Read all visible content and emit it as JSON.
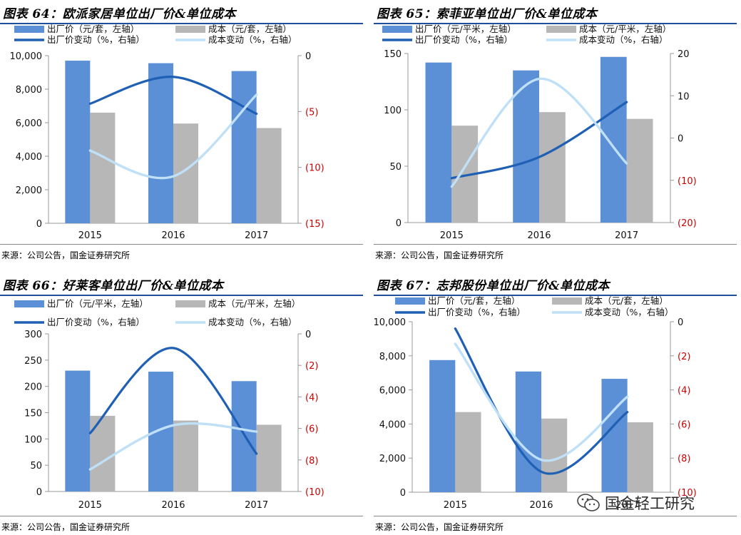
{
  "panels": [
    {
      "title": "图表 64：欧派家居单位出厂价&单位成本",
      "source": "来源：公司公告，国金证券研究所"
    },
    {
      "title": "图表 65：索菲亚单位出厂价&单位成本",
      "source": "来源：公司公告，国金证券研究所"
    },
    {
      "title": "图表 66：好莱客单位出厂价&单位成本",
      "source": "来源：公司公告，国金证券研究所"
    },
    {
      "title": "图表 67：志邦股份单位出厂价&单位成本",
      "source": "来源：公司公告，国金证券研究所"
    }
  ],
  "watermark": {
    "text": "国金轻工研究",
    "icon": "wechat-icon"
  },
  "colors": {
    "price_bar": "#5b8fd6",
    "cost_bar": "#b7b7b7",
    "price_line": "#1f5fb4",
    "cost_line": "#bfe0f6",
    "right_tick": "#cc0000"
  },
  "chart_data": [
    {
      "type": "bar",
      "categories": [
        "2015",
        "2016",
        "2017"
      ],
      "legend": [
        "出厂价（元/套，左轴）",
        "成本（元/套，左轴）",
        "出厂价变动（%，右轴）",
        "成本变动（%，右轴）"
      ],
      "ylim": [
        0,
        10000
      ],
      "yticks": [
        "0",
        "2,000",
        "4,000",
        "6,000",
        "8,000",
        "10,000"
      ],
      "y2lim": [
        -15,
        0
      ],
      "y2ticks": [
        "0",
        "(5)",
        "(10)",
        "(15)"
      ],
      "series": [
        {
          "name": "出厂价（元/套，左轴）",
          "type": "bar",
          "axis": "left",
          "values": [
            9700,
            9550,
            9080
          ]
        },
        {
          "name": "成本（元/套，左轴）",
          "type": "bar",
          "axis": "left",
          "values": [
            6600,
            5950,
            5680
          ]
        },
        {
          "name": "出厂价变动（%，右轴）",
          "type": "line",
          "axis": "right",
          "values": [
            -4.3,
            -1.9,
            -5.2
          ]
        },
        {
          "name": "成本变动（%，右轴）",
          "type": "line",
          "axis": "right",
          "values": [
            -8.5,
            -10.8,
            -3.5
          ]
        }
      ]
    },
    {
      "type": "bar",
      "categories": [
        "2015",
        "2016",
        "2017"
      ],
      "legend": [
        "出厂价（元/平米，左轴）",
        "成本（元/平米，左轴）",
        "出厂价变动（%，右轴）",
        "成本变动（%，右轴）"
      ],
      "ylim": [
        0,
        150
      ],
      "yticks": [
        "0",
        "50",
        "100",
        "150"
      ],
      "y2lim": [
        -20,
        20
      ],
      "y2ticks": [
        "20",
        "10",
        "0",
        "(10)",
        "(20)"
      ],
      "series": [
        {
          "name": "出厂价（元/平米，左轴）",
          "type": "bar",
          "axis": "left",
          "values": [
            142,
            135,
            147
          ]
        },
        {
          "name": "成本（元/平米，左轴）",
          "type": "bar",
          "axis": "left",
          "values": [
            86,
            98,
            92
          ]
        },
        {
          "name": "出厂价变动（%，右轴）",
          "type": "line",
          "axis": "right",
          "values": [
            -9.5,
            -4.5,
            8.5
          ]
        },
        {
          "name": "成本变动（%，右轴）",
          "type": "line",
          "axis": "right",
          "values": [
            -11.5,
            14.0,
            -6.0
          ]
        }
      ]
    },
    {
      "type": "bar",
      "categories": [
        "2015",
        "2016",
        "2017"
      ],
      "legend": [
        "出厂价（元/平米，左轴）",
        "成本（元/平米，左轴）",
        "出厂价变动（%，右轴）",
        "成本变动（%，右轴）"
      ],
      "ylim": [
        0,
        300
      ],
      "yticks": [
        "0",
        "50",
        "100",
        "150",
        "200",
        "250",
        "300"
      ],
      "y2lim": [
        -10,
        0
      ],
      "y2ticks": [
        "0",
        "(2)",
        "(4)",
        "(6)",
        "(8)",
        "(10)"
      ],
      "series": [
        {
          "name": "出厂价（元/平米，左轴）",
          "type": "bar",
          "axis": "left",
          "values": [
            230,
            228,
            210
          ]
        },
        {
          "name": "成本（元/平米，左轴）",
          "type": "bar",
          "axis": "left",
          "values": [
            144,
            135,
            127
          ]
        },
        {
          "name": "出厂价变动（%，右轴）",
          "type": "line",
          "axis": "right",
          "values": [
            -6.3,
            -0.9,
            -7.6
          ]
        },
        {
          "name": "成本变动（%，右轴）",
          "type": "line",
          "axis": "right",
          "values": [
            -8.6,
            -5.8,
            -6.2
          ]
        }
      ]
    },
    {
      "type": "bar",
      "categories": [
        "2015",
        "2016",
        "2017"
      ],
      "legend": [
        "出厂价（元/套，左轴）",
        "成本（元/套，左轴）",
        "出厂价变动（%，右轴）",
        "成本变动（%，右轴）"
      ],
      "ylim": [
        0,
        10000
      ],
      "yticks": [
        "0",
        "2,000",
        "4,000",
        "6,000",
        "8,000",
        "10,000"
      ],
      "y2lim": [
        -10,
        0
      ],
      "y2ticks": [
        "0",
        "(2)",
        "(4)",
        "(6)",
        "(8)",
        "(10)"
      ],
      "series": [
        {
          "name": "出厂价（元/套，左轴）",
          "type": "bar",
          "axis": "left",
          "values": [
            7750,
            7080,
            6650
          ]
        },
        {
          "name": "成本（元/套，左轴）",
          "type": "bar",
          "axis": "left",
          "values": [
            4700,
            4320,
            4100
          ]
        },
        {
          "name": "出厂价变动（%，右轴）",
          "type": "line",
          "axis": "right",
          "values": [
            -0.4,
            -8.8,
            -5.3
          ]
        },
        {
          "name": "成本变动（%，右轴）",
          "type": "line",
          "axis": "right",
          "values": [
            -1.3,
            -8.1,
            -4.4
          ]
        }
      ]
    }
  ]
}
